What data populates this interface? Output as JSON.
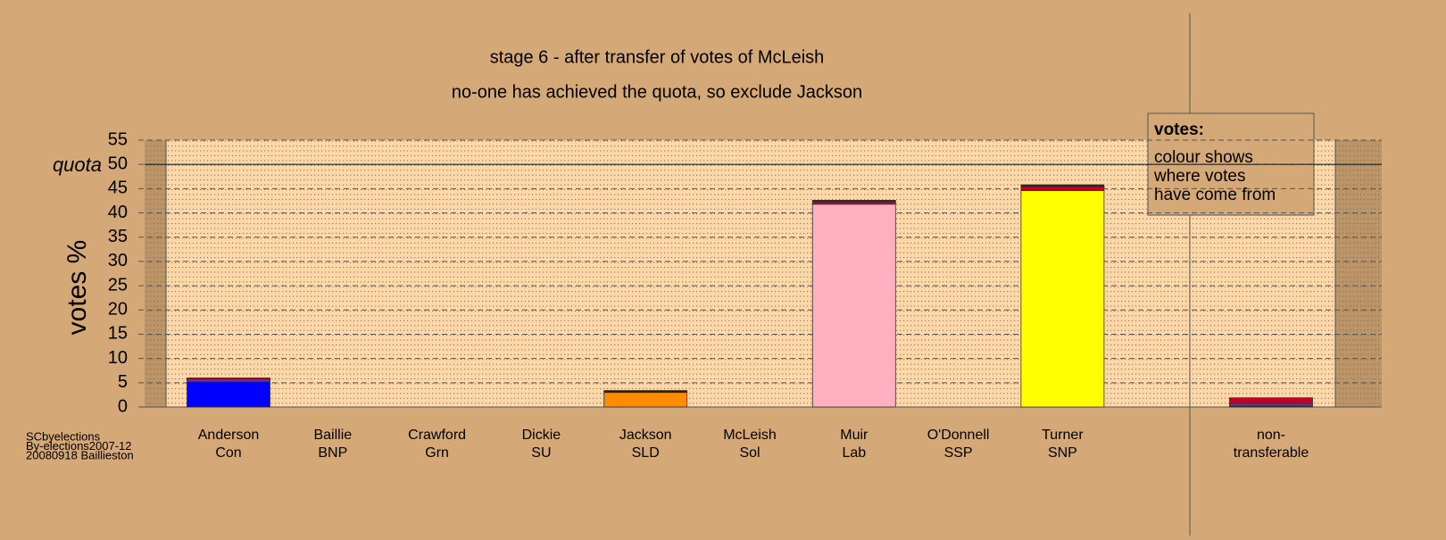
{
  "chart_data": {
    "type": "stacked_bar",
    "title": "stage 6 - after transfer of votes of McLeish",
    "subtitle": "no-one has achieved the quota, so exclude Jackson",
    "y_label": "votes %",
    "quota_label": "quota",
    "quota": 50,
    "categories": [
      "Anderson",
      "Baillie",
      "Crawford",
      "Dickie",
      "Jackson",
      "McLeish",
      "Muir",
      "O'Donnell",
      "Turner",
      null,
      "non-"
    ],
    "parties": [
      "Con",
      "BNP",
      "Grn",
      "SU",
      "SLD",
      "Sol",
      "Lab",
      "SSP",
      "SNP",
      null,
      "transferable"
    ],
    "series": [
      {
        "color": "#0000ff",
        "values": [
          5.2,
          0,
          0,
          0,
          0,
          0,
          0,
          0,
          0,
          null,
          0.2
        ]
      },
      {
        "color": "#ff8c00",
        "values": [
          0,
          0,
          0,
          0,
          3.0,
          0,
          0,
          0,
          0,
          null,
          0
        ]
      },
      {
        "color": "#ffb0c0",
        "values": [
          0,
          0,
          0,
          0,
          0,
          0,
          41.8,
          0,
          0,
          null,
          0
        ]
      },
      {
        "color": "#ffff00",
        "values": [
          0,
          0,
          0,
          0,
          0,
          0,
          0,
          0,
          44.6,
          null,
          0
        ]
      },
      {
        "color": "#7030a0",
        "values": [
          0.5,
          0,
          0,
          0,
          0,
          0,
          0,
          0,
          0,
          null,
          0.5
        ]
      },
      {
        "color": "#c0002a",
        "values": [
          0.3,
          0,
          0,
          0,
          0,
          0,
          0.5,
          0,
          0.8,
          null,
          1.2
        ]
      },
      {
        "color": "#202020",
        "values": [
          0,
          0,
          0,
          0,
          0.4,
          0,
          0.3,
          0,
          0.4,
          null,
          0
        ]
      }
    ],
    "ylim": [
      0,
      55
    ],
    "yticks": [
      0,
      5,
      10,
      15,
      20,
      25,
      30,
      35,
      40,
      45,
      50,
      55
    ],
    "legend": {
      "title": "votes:",
      "lines": [
        "colour shows",
        "where votes",
        "have come from"
      ]
    },
    "footnote": [
      "SCbyelections",
      "By-elections2007-12",
      "20080918 Baillieston"
    ]
  }
}
